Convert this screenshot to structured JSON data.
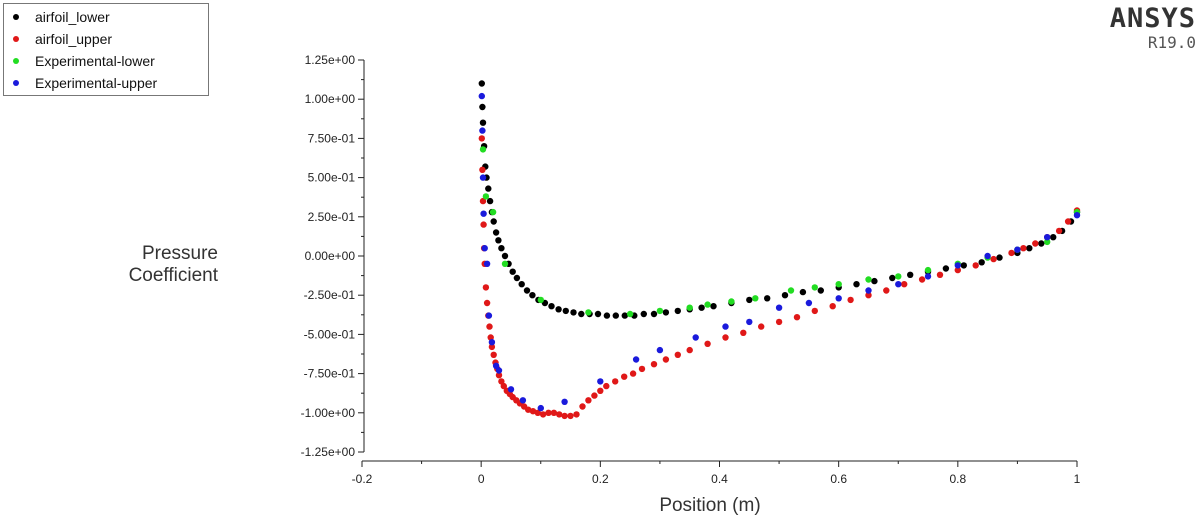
{
  "brand": {
    "name": "ANSYS",
    "version": "R19.0"
  },
  "legend": [
    {
      "label": "airfoil_lower",
      "color": "#000000"
    },
    {
      "label": "airfoil_upper",
      "color": "#e01818"
    },
    {
      "label": "Experimental-lower",
      "color": "#22dd22"
    },
    {
      "label": "Experimental-upper",
      "color": "#1a1adc"
    }
  ],
  "chart_data": {
    "type": "scatter",
    "xlabel": "Position (m)",
    "ylabel": "Pressure Coefficient",
    "xlim": [
      -0.2,
      1
    ],
    "ylim": [
      -1.25,
      1.25
    ],
    "xticks": [
      "-0.2",
      "0",
      "0.2",
      "0.4",
      "0.6",
      "0.8",
      "1"
    ],
    "xtick_values": [
      -0.2,
      0,
      0.2,
      0.4,
      0.6,
      0.8,
      1
    ],
    "yticks": [
      "1.25e+00",
      "1.00e+00",
      "7.50e-01",
      "5.00e-01",
      "2.50e-01",
      "0.00e+00",
      "-2.50e-01",
      "-5.00e-01",
      "-7.50e-01",
      "-1.00e+00",
      "-1.25e+00"
    ],
    "ytick_values": [
      1.25,
      1.0,
      0.75,
      0.5,
      0.25,
      0.0,
      -0.25,
      -0.5,
      -0.75,
      -1.0,
      -1.25
    ],
    "grid": false,
    "legend_position": "top-left",
    "series": [
      {
        "name": "airfoil_lower",
        "color": "#000000",
        "x": [
          0.001,
          0.002,
          0.003,
          0.005,
          0.007,
          0.009,
          0.012,
          0.015,
          0.018,
          0.021,
          0.025,
          0.029,
          0.034,
          0.04,
          0.046,
          0.053,
          0.06,
          0.068,
          0.077,
          0.086,
          0.096,
          0.107,
          0.118,
          0.13,
          0.142,
          0.155,
          0.168,
          0.182,
          0.196,
          0.211,
          0.226,
          0.241,
          0.257,
          0.273,
          0.29,
          0.31,
          0.33,
          0.35,
          0.37,
          0.39,
          0.42,
          0.45,
          0.48,
          0.51,
          0.54,
          0.57,
          0.6,
          0.63,
          0.66,
          0.69,
          0.72,
          0.75,
          0.78,
          0.81,
          0.84,
          0.87,
          0.9,
          0.92,
          0.94,
          0.96,
          0.975,
          0.99,
          1.0
        ],
        "y": [
          1.1,
          0.95,
          0.85,
          0.7,
          0.57,
          0.5,
          0.43,
          0.35,
          0.28,
          0.22,
          0.15,
          0.1,
          0.05,
          0.0,
          -0.05,
          -0.1,
          -0.14,
          -0.18,
          -0.22,
          -0.25,
          -0.28,
          -0.3,
          -0.32,
          -0.34,
          -0.35,
          -0.36,
          -0.37,
          -0.37,
          -0.37,
          -0.38,
          -0.38,
          -0.38,
          -0.38,
          -0.37,
          -0.37,
          -0.36,
          -0.35,
          -0.34,
          -0.33,
          -0.32,
          -0.3,
          -0.28,
          -0.27,
          -0.25,
          -0.23,
          -0.22,
          -0.2,
          -0.18,
          -0.16,
          -0.14,
          -0.12,
          -0.1,
          -0.08,
          -0.06,
          -0.04,
          -0.01,
          0.02,
          0.05,
          0.08,
          0.12,
          0.16,
          0.22,
          0.28
        ]
      },
      {
        "name": "airfoil_upper",
        "color": "#e01818",
        "x": [
          0.001,
          0.002,
          0.003,
          0.004,
          0.005,
          0.006,
          0.008,
          0.01,
          0.012,
          0.014,
          0.016,
          0.018,
          0.021,
          0.024,
          0.027,
          0.03,
          0.034,
          0.038,
          0.043,
          0.048,
          0.053,
          0.059,
          0.065,
          0.072,
          0.079,
          0.087,
          0.095,
          0.104,
          0.113,
          0.122,
          0.131,
          0.14,
          0.15,
          0.16,
          0.17,
          0.18,
          0.19,
          0.2,
          0.21,
          0.225,
          0.24,
          0.255,
          0.27,
          0.29,
          0.31,
          0.33,
          0.35,
          0.38,
          0.41,
          0.44,
          0.47,
          0.5,
          0.53,
          0.56,
          0.59,
          0.62,
          0.65,
          0.68,
          0.71,
          0.74,
          0.77,
          0.8,
          0.83,
          0.86,
          0.89,
          0.91,
          0.93,
          0.95,
          0.97,
          0.985,
          1.0
        ],
        "y": [
          0.75,
          0.55,
          0.35,
          0.2,
          0.05,
          -0.05,
          -0.2,
          -0.3,
          -0.38,
          -0.45,
          -0.52,
          -0.58,
          -0.63,
          -0.68,
          -0.72,
          -0.76,
          -0.8,
          -0.83,
          -0.86,
          -0.88,
          -0.9,
          -0.92,
          -0.94,
          -0.96,
          -0.98,
          -0.99,
          -1.0,
          -1.01,
          -1.0,
          -1.0,
          -1.01,
          -1.02,
          -1.02,
          -1.01,
          -0.96,
          -0.92,
          -0.89,
          -0.86,
          -0.83,
          -0.8,
          -0.77,
          -0.75,
          -0.72,
          -0.69,
          -0.66,
          -0.63,
          -0.6,
          -0.56,
          -0.52,
          -0.49,
          -0.45,
          -0.42,
          -0.39,
          -0.35,
          -0.32,
          -0.28,
          -0.25,
          -0.22,
          -0.18,
          -0.15,
          -0.12,
          -0.09,
          -0.06,
          -0.02,
          0.02,
          0.05,
          0.08,
          0.12,
          0.16,
          0.22,
          0.29
        ]
      },
      {
        "name": "Experimental-lower",
        "color": "#22dd22",
        "x": [
          0.003,
          0.008,
          0.02,
          0.04,
          0.1,
          0.18,
          0.25,
          0.3,
          0.35,
          0.38,
          0.42,
          0.46,
          0.52,
          0.56,
          0.6,
          0.65,
          0.7,
          0.75,
          0.8,
          0.85,
          0.9,
          0.95,
          1.0
        ],
        "y": [
          0.68,
          0.38,
          0.28,
          -0.05,
          -0.28,
          -0.36,
          -0.37,
          -0.35,
          -0.33,
          -0.31,
          -0.29,
          -0.27,
          -0.22,
          -0.2,
          -0.18,
          -0.15,
          -0.13,
          -0.09,
          -0.05,
          -0.01,
          0.04,
          0.09,
          0.28
        ]
      },
      {
        "name": "Experimental-upper",
        "color": "#1a1adc",
        "x": [
          0.001,
          0.002,
          0.003,
          0.004,
          0.006,
          0.01,
          0.013,
          0.018,
          0.025,
          0.03,
          0.05,
          0.07,
          0.1,
          0.14,
          0.2,
          0.26,
          0.3,
          0.36,
          0.41,
          0.45,
          0.5,
          0.55,
          0.6,
          0.65,
          0.7,
          0.75,
          0.8,
          0.85,
          0.9,
          0.95,
          1.0
        ],
        "y": [
          1.02,
          0.8,
          0.5,
          0.27,
          0.05,
          -0.05,
          -0.38,
          -0.55,
          -0.7,
          -0.73,
          -0.85,
          -0.92,
          -0.97,
          -0.93,
          -0.8,
          -0.66,
          -0.6,
          -0.52,
          -0.45,
          -0.42,
          -0.33,
          -0.3,
          -0.27,
          -0.22,
          -0.18,
          -0.13,
          -0.06,
          0.0,
          0.04,
          0.12,
          0.26
        ]
      }
    ]
  }
}
